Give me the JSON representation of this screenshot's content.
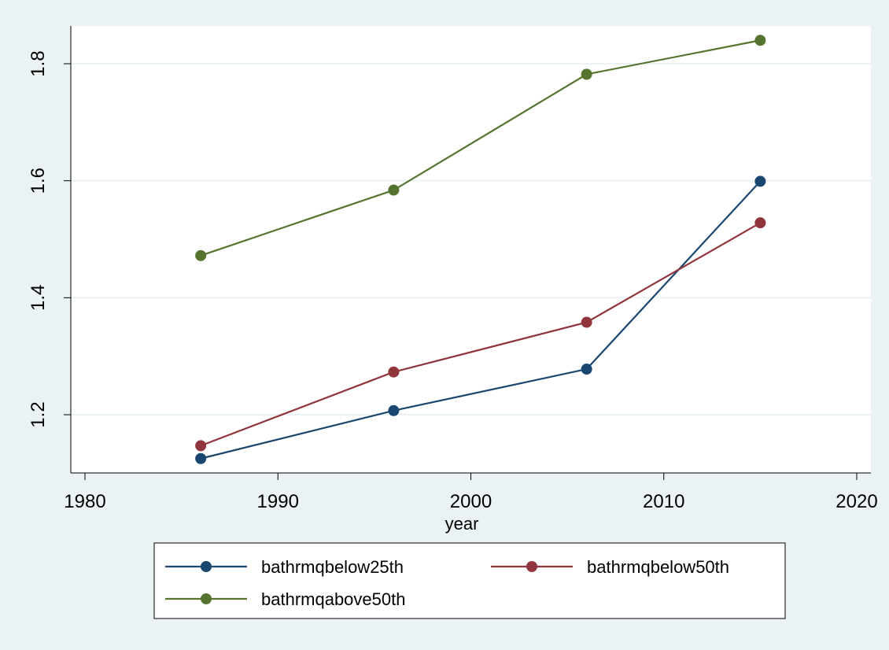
{
  "chart_data": {
    "type": "line",
    "title": "",
    "xlabel": "year",
    "ylabel": "",
    "xlim": [
      1980,
      2020
    ],
    "ylim": [
      1.1,
      1.86
    ],
    "xticks": [
      1980,
      1990,
      2000,
      2010,
      2020
    ],
    "yticks": [
      1.2,
      1.4,
      1.6,
      1.8
    ],
    "grid": true,
    "legend_position": "bottom",
    "x": [
      1986,
      1996,
      2006,
      2015
    ],
    "series": [
      {
        "name": "bathrmqbelow25th",
        "color": "#1a476f",
        "values": [
          1.125,
          1.207,
          1.278,
          1.599
        ]
      },
      {
        "name": "bathrmqbelow50th",
        "color": "#90353b",
        "values": [
          1.147,
          1.273,
          1.358,
          1.528
        ]
      },
      {
        "name": "bathrmqabove50th",
        "color": "#55752f",
        "values": [
          1.472,
          1.584,
          1.782,
          1.84
        ]
      }
    ]
  },
  "colors": {
    "page_background": "#eaf2f3",
    "plot_background": "#ffffff",
    "gridline": "#eaf2f3"
  }
}
